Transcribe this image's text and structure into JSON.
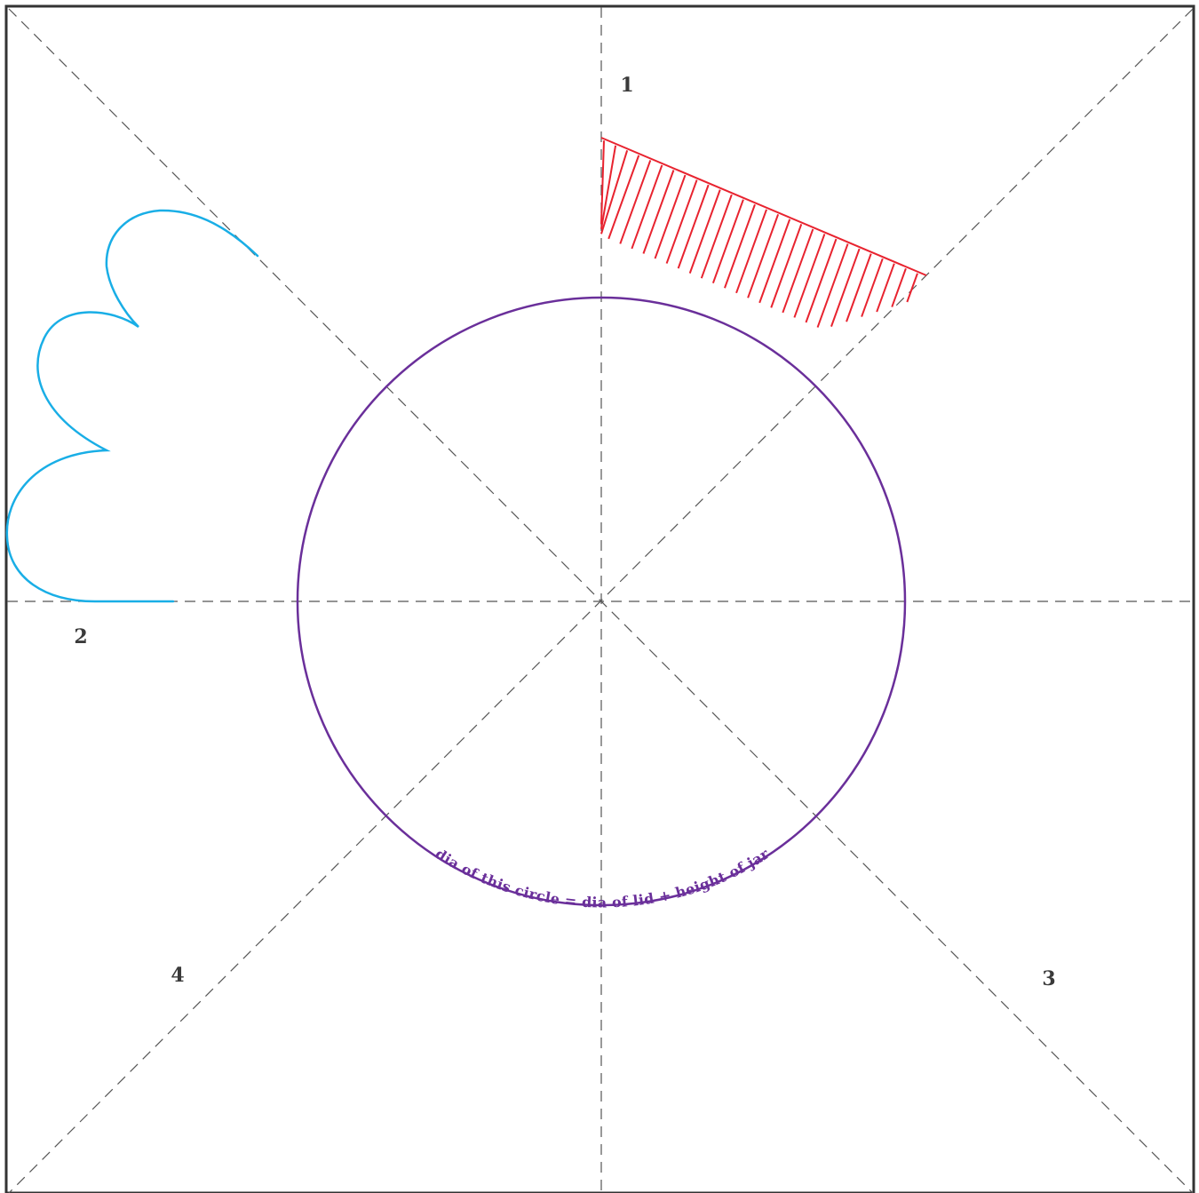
{
  "colors": {
    "frame": "#333333",
    "fold_lines": "#555555",
    "circle": "#6a2f9a",
    "hatch": "#e8232f",
    "scallop": "#19aee6",
    "numbers": "#3a3a3a"
  },
  "section_numbers": {
    "n1": "1",
    "n2": "2",
    "n3": "3",
    "n4": "4"
  },
  "circle_label": "dia of this circle = dia of lid + height of jar"
}
